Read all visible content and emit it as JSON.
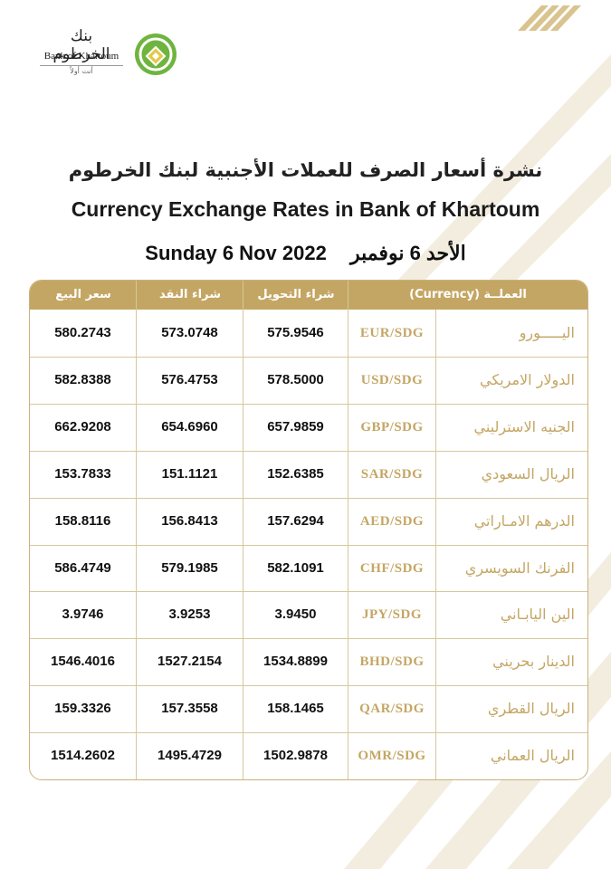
{
  "brand": {
    "name_ar": "بنك الخرطوم",
    "name_en": "Bank of Khartoum",
    "tagline": "أنت أولاً",
    "color_gold": "#c4a664",
    "color_green": "#6fb43f"
  },
  "title_ar": "نشرة أسعار الصرف للعملات الأجنبية لبنك الخرطوم",
  "title_en": "Currency Exchange Rates in Bank of Khartoum",
  "date_en": "Sunday 6 Nov  2022",
  "date_ar": "الأحد 6 نوفمبر",
  "table": {
    "headers": {
      "currency": "العملــة     (Currency)",
      "transfer_buy": "شراء التحويل",
      "cash_buy": "شراء النقد",
      "sell": "سعر البيع"
    },
    "rows": [
      {
        "name": "اليـــــورو",
        "code": "EUR/SDG",
        "transfer_buy": "575.9546",
        "cash_buy": "573.0748",
        "sell": "580.2743"
      },
      {
        "name": "الدولار الامريكي",
        "code": "USD/SDG",
        "transfer_buy": "578.5000",
        "cash_buy": "576.4753",
        "sell": "582.8388"
      },
      {
        "name": "الجنيه الاسترليني",
        "code": "GBP/SDG",
        "transfer_buy": "657.9859",
        "cash_buy": "654.6960",
        "sell": "662.9208"
      },
      {
        "name": "الريال السعودي",
        "code": "SAR/SDG",
        "transfer_buy": "152.6385",
        "cash_buy": "151.1121",
        "sell": "153.7833"
      },
      {
        "name": "الدرهم الامـاراتي",
        "code": "AED/SDG",
        "transfer_buy": "157.6294",
        "cash_buy": "156.8413",
        "sell": "158.8116"
      },
      {
        "name": "الفرنك السويسري",
        "code": "CHF/SDG",
        "transfer_buy": "582.1091",
        "cash_buy": "579.1985",
        "sell": "586.4749"
      },
      {
        "name": "الين اليابـاني",
        "code": "JPY/SDG",
        "transfer_buy": "3.9450",
        "cash_buy": "3.9253",
        "sell": "3.9746"
      },
      {
        "name": "الدينار بحريني",
        "code": "BHD/SDG",
        "transfer_buy": "1534.8899",
        "cash_buy": "1527.2154",
        "sell": "1546.4016"
      },
      {
        "name": "الريال القطري",
        "code": "QAR/SDG",
        "transfer_buy": "158.1465",
        "cash_buy": "157.3558",
        "sell": "159.3326"
      },
      {
        "name": "الريال العماني",
        "code": "OMR/SDG",
        "transfer_buy": "1502.9878",
        "cash_buy": "1495.4729",
        "sell": "1514.2602"
      }
    ]
  }
}
